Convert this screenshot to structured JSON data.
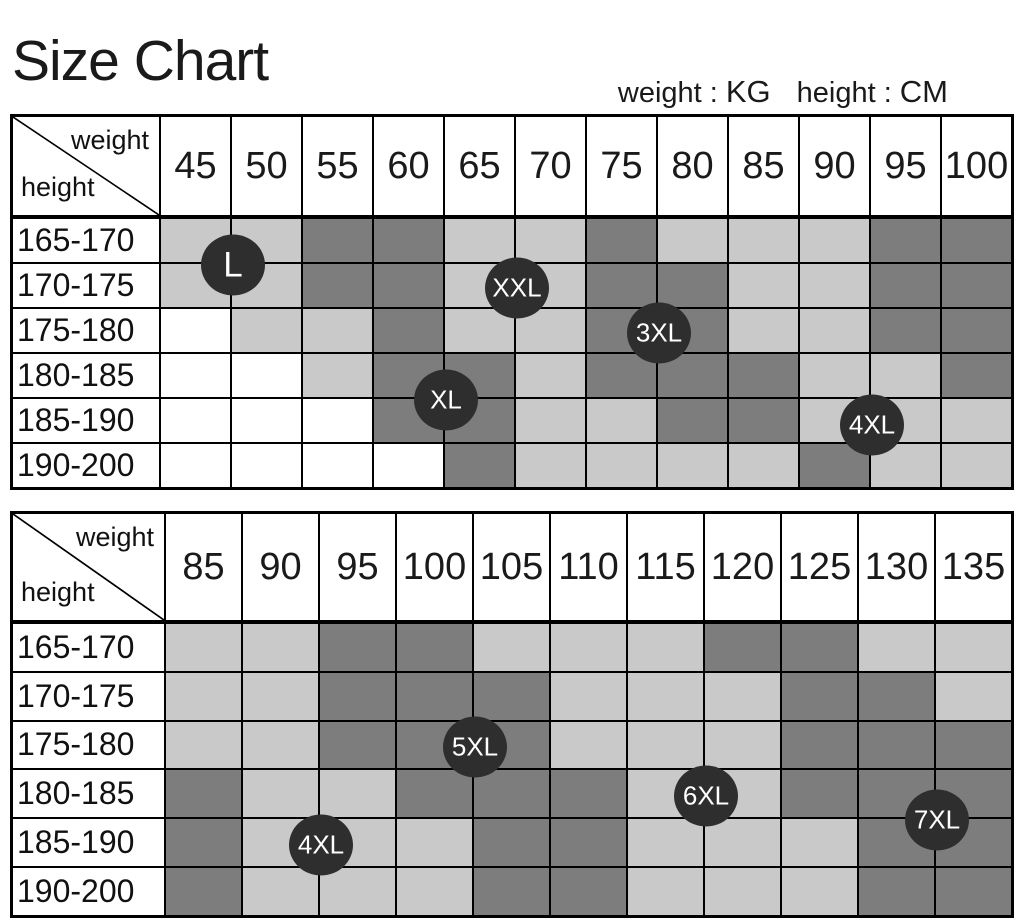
{
  "header": {
    "title": "Size Chart",
    "weight_label": "weight :",
    "weight_unit": "KG",
    "height_label": "height :",
    "height_unit": "CM"
  },
  "colors": {
    "cell_light": "#c9c9c9",
    "cell_dark": "#7d7d7d",
    "cell_empty": "#ffffff",
    "badge_bg": "#2e2e2e",
    "badge_text": "#ffffff",
    "grid_line": "#000000"
  },
  "chart_data": [
    {
      "type": "heatmap",
      "title": "Size Chart (upper table)",
      "corner_top_label": "weight",
      "corner_bottom_label": "height",
      "weight_columns": [
        "45",
        "50",
        "55",
        "60",
        "65",
        "70",
        "75",
        "80",
        "85",
        "90",
        "95",
        "100"
      ],
      "height_rows": [
        "165-170",
        "170-175",
        "175-180",
        "180-185",
        "185-190",
        "190-200"
      ],
      "cell_code_legend": {
        "w": "white",
        "l": "light-gray",
        "d": "dark-gray"
      },
      "cells": [
        [
          "l",
          "l",
          "d",
          "d",
          "l",
          "l",
          "d",
          "l",
          "l",
          "l",
          "d",
          "d"
        ],
        [
          "l",
          "l",
          "d",
          "d",
          "l",
          "l",
          "d",
          "d",
          "l",
          "l",
          "d",
          "d"
        ],
        [
          "w",
          "l",
          "l",
          "d",
          "l",
          "l",
          "d",
          "d",
          "l",
          "l",
          "d",
          "d"
        ],
        [
          "w",
          "w",
          "l",
          "d",
          "d",
          "l",
          "d",
          "d",
          "d",
          "l",
          "l",
          "d"
        ],
        [
          "w",
          "w",
          "w",
          "d",
          "d",
          "l",
          "l",
          "d",
          "d",
          "l",
          "l",
          "l"
        ],
        [
          "w",
          "w",
          "w",
          "w",
          "d",
          "l",
          "l",
          "l",
          "l",
          "d",
          "l",
          "l"
        ]
      ],
      "badges": [
        {
          "label": "L",
          "col_boundary": 1,
          "row_center": 1
        },
        {
          "label": "XXL",
          "col_boundary": 5,
          "row_center": 1.5
        },
        {
          "label": "3XL",
          "col_boundary": 7,
          "row_center": 2.5
        },
        {
          "label": "XL",
          "col_boundary": 4,
          "row_center": 4
        },
        {
          "label": "4XL",
          "col_boundary": 10,
          "row_center": 4.55
        }
      ]
    },
    {
      "type": "heatmap",
      "title": "Size Chart (lower table)",
      "corner_top_label": "weight",
      "corner_bottom_label": "height",
      "weight_columns": [
        "85",
        "90",
        "95",
        "100",
        "105",
        "110",
        "115",
        "120",
        "125",
        "130",
        "135"
      ],
      "height_rows": [
        "165-170",
        "170-175",
        "175-180",
        "180-185",
        "185-190",
        "190-200"
      ],
      "cell_code_legend": {
        "w": "white",
        "l": "light-gray",
        "d": "dark-gray"
      },
      "cells": [
        [
          "l",
          "l",
          "d",
          "d",
          "l",
          "l",
          "l",
          "d",
          "d",
          "l",
          "l"
        ],
        [
          "l",
          "l",
          "d",
          "d",
          "d",
          "l",
          "l",
          "l",
          "d",
          "d",
          "l"
        ],
        [
          "l",
          "l",
          "d",
          "d",
          "d",
          "l",
          "l",
          "l",
          "d",
          "d",
          "d"
        ],
        [
          "d",
          "l",
          "l",
          "d",
          "d",
          "d",
          "l",
          "l",
          "d",
          "d",
          "d"
        ],
        [
          "d",
          "l",
          "l",
          "l",
          "d",
          "d",
          "l",
          "l",
          "l",
          "d",
          "d"
        ],
        [
          "d",
          "l",
          "l",
          "l",
          "d",
          "d",
          "l",
          "l",
          "l",
          "d",
          "d"
        ]
      ],
      "badges": [
        {
          "label": "5XL",
          "col_boundary": 4,
          "row_center": 2.5
        },
        {
          "label": "6XL",
          "col_boundary": 7,
          "row_center": 3.5
        },
        {
          "label": "4XL",
          "col_boundary": 2,
          "row_center": 4.5
        },
        {
          "label": "7XL",
          "col_boundary": 10,
          "row_center": 4
        }
      ]
    }
  ]
}
